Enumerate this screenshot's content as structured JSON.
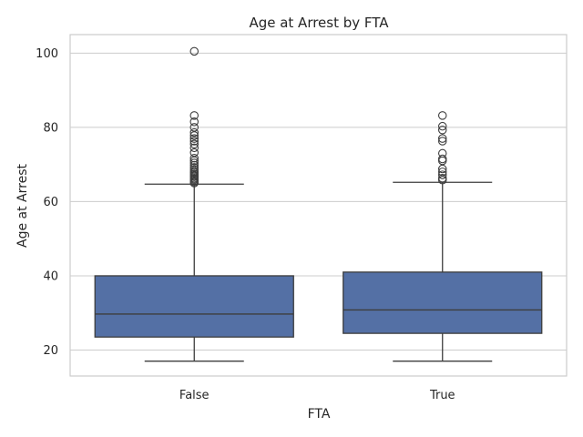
{
  "chart_data": {
    "type": "box",
    "title": "Age at Arrest by FTA",
    "xlabel": "FTA",
    "ylabel": "Age at Arrest",
    "ylim": [
      13,
      105
    ],
    "yticks": [
      20,
      40,
      60,
      80,
      100
    ],
    "grid": true,
    "colors": {
      "box_fill": "#5470a5",
      "line": "#3d3d3d",
      "grid": "#cccccc"
    },
    "categories": [
      "False",
      "True"
    ],
    "boxes": [
      {
        "category": "False",
        "whisker_low": 17,
        "q1": 23.5,
        "median": 29.7,
        "q3": 40,
        "whisker_high": 64.7,
        "outliers": [
          65,
          65.3,
          65.6,
          66,
          66.3,
          66.7,
          67,
          67.4,
          67.8,
          68.2,
          68.7,
          69.2,
          69.8,
          70.4,
          71,
          71.7,
          73.2,
          74.5,
          75.5,
          76.3,
          77,
          77.8,
          78.6,
          80,
          81.5,
          83.2,
          100.5
        ]
      },
      {
        "category": "True",
        "whisker_low": 17,
        "q1": 24.5,
        "median": 30.8,
        "q3": 41,
        "whisker_high": 65.2,
        "outliers": [
          65.8,
          66.3,
          67.2,
          68,
          68.8,
          71,
          71.5,
          73,
          76.3,
          77,
          79.3,
          80.3,
          83.2
        ]
      }
    ]
  }
}
